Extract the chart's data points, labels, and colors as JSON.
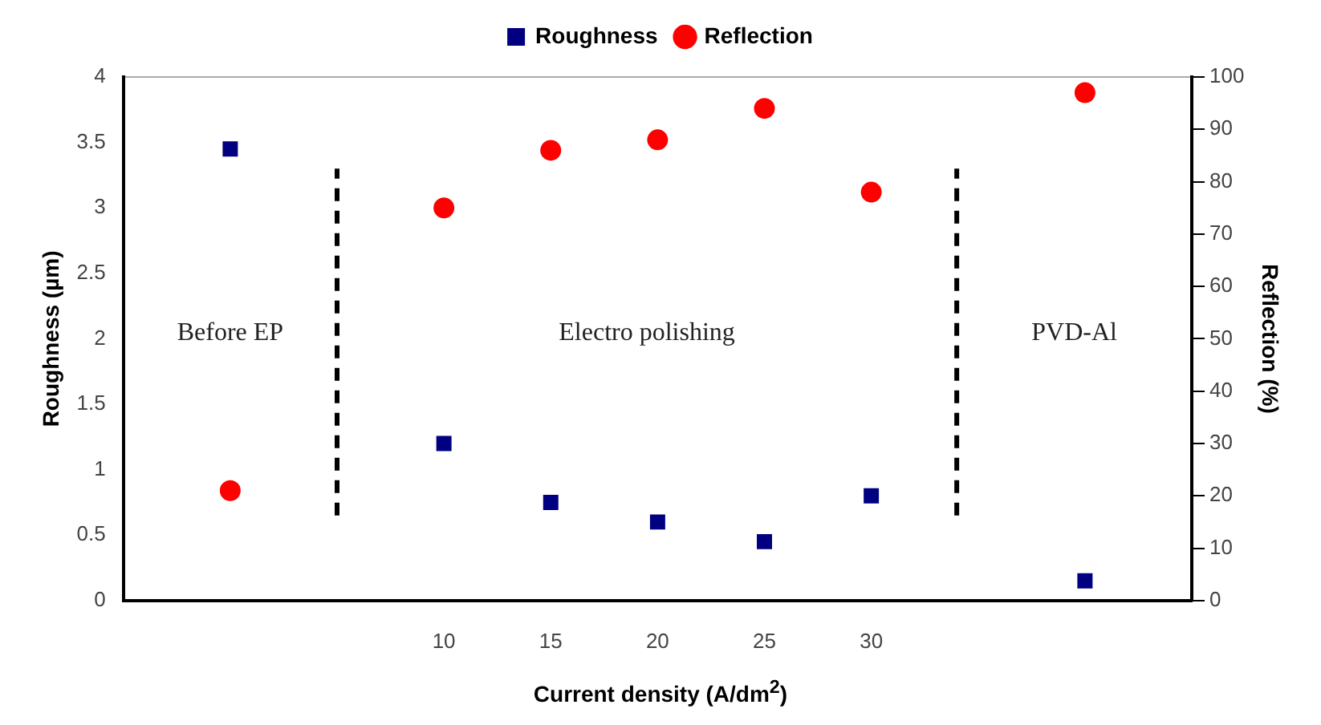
{
  "chart_data": {
    "type": "scatter",
    "xlabel": "Current density (A/dm$^{2}$)",
    "ylabel": "Roughness (µm)",
    "y2label": "Reflection (%)",
    "xlim": [
      -5,
      45
    ],
    "xticks": [
      10,
      15,
      20,
      25,
      30
    ],
    "ylim": [
      0,
      4
    ],
    "yticks": [
      0,
      0.5,
      1,
      1.5,
      2,
      2.5,
      3,
      3.5,
      4
    ],
    "y2lim": [
      0,
      100
    ],
    "y2ticks": [
      0,
      10,
      20,
      30,
      40,
      50,
      60,
      70,
      80,
      90,
      100
    ],
    "grid": false,
    "legend": "top",
    "series": [
      {
        "name": "Roughness",
        "marker": "square",
        "color": "#000080",
        "x": [
          0,
          10,
          15,
          20,
          25,
          30,
          40
        ],
        "values": [
          3.45,
          1.2,
          0.75,
          0.6,
          0.45,
          0.8,
          0.15
        ]
      },
      {
        "name": "Reflection",
        "marker": "circle",
        "color": "#ff0000",
        "axis": "y2",
        "x": [
          0,
          10,
          15,
          20,
          25,
          30,
          40
        ],
        "values": [
          21,
          75,
          86,
          88,
          94,
          78,
          97
        ]
      },
      {
        "type": "line",
        "marker": "none",
        "line_style": "dashed",
        "color": "#000000",
        "x": [
          5,
          5
        ],
        "values": [
          0.65,
          3.3
        ]
      },
      {
        "type": "line",
        "marker": "none",
        "line_style": "dashed",
        "color": "#000000",
        "x": [
          34,
          34
        ],
        "values": [
          0.65,
          3.3
        ]
      }
    ],
    "annotations": [
      "Before EP",
      "Electro polishing",
      "PVD-Al"
    ]
  }
}
